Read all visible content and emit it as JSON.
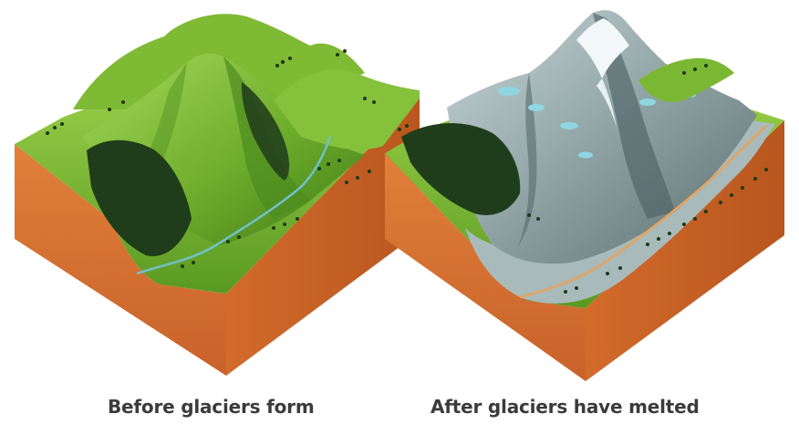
{
  "panels": [
    {
      "id": "before",
      "caption": "Before glaciers form"
    },
    {
      "id": "after",
      "caption": "After glaciers have melted"
    }
  ],
  "colors": {
    "soil_front": "#d9742c",
    "soil_side": "#c55f1f",
    "grass_light": "#8cc63f",
    "grass_dark": "#4c8a1d",
    "forest": "#1f3d1a",
    "rock_light": "#b5c4c5",
    "rock_dark": "#5e7274",
    "snow": "#eef6f7",
    "lake": "#8fd6e0",
    "caption_text": "#3b3b3b"
  }
}
